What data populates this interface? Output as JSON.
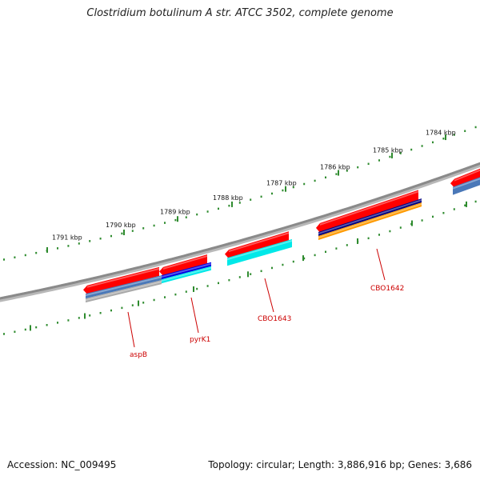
{
  "title": "Clostridium botulinum A str. ATCC 3502, complete genome",
  "accession": "Accession: NC_009495",
  "summary": "Topology: circular; Length: 3,886,916 bp; Genes: 3,686",
  "kbp_labels": [
    "1791 kbp",
    "1790 kbp",
    "1789 kbp",
    "1788 kbp",
    "1787 kbp",
    "1786 kbp",
    "1785 kbp",
    "1784 kbp"
  ],
  "gene_labels": [
    "aspB",
    "pyrK1",
    "CBO1643",
    "CBO1642"
  ],
  "colors": {
    "backbone": "#8a8a8a",
    "tick": "#2e8b2e",
    "gene": "#ff0000",
    "gene_label": "#cc0000",
    "steelblue": "#4a78b8",
    "gray": "#a9a9a9",
    "blue": "#0000e0",
    "cyan": "#00e8e8",
    "navy": "#000080",
    "orange": "#ff9a00"
  }
}
